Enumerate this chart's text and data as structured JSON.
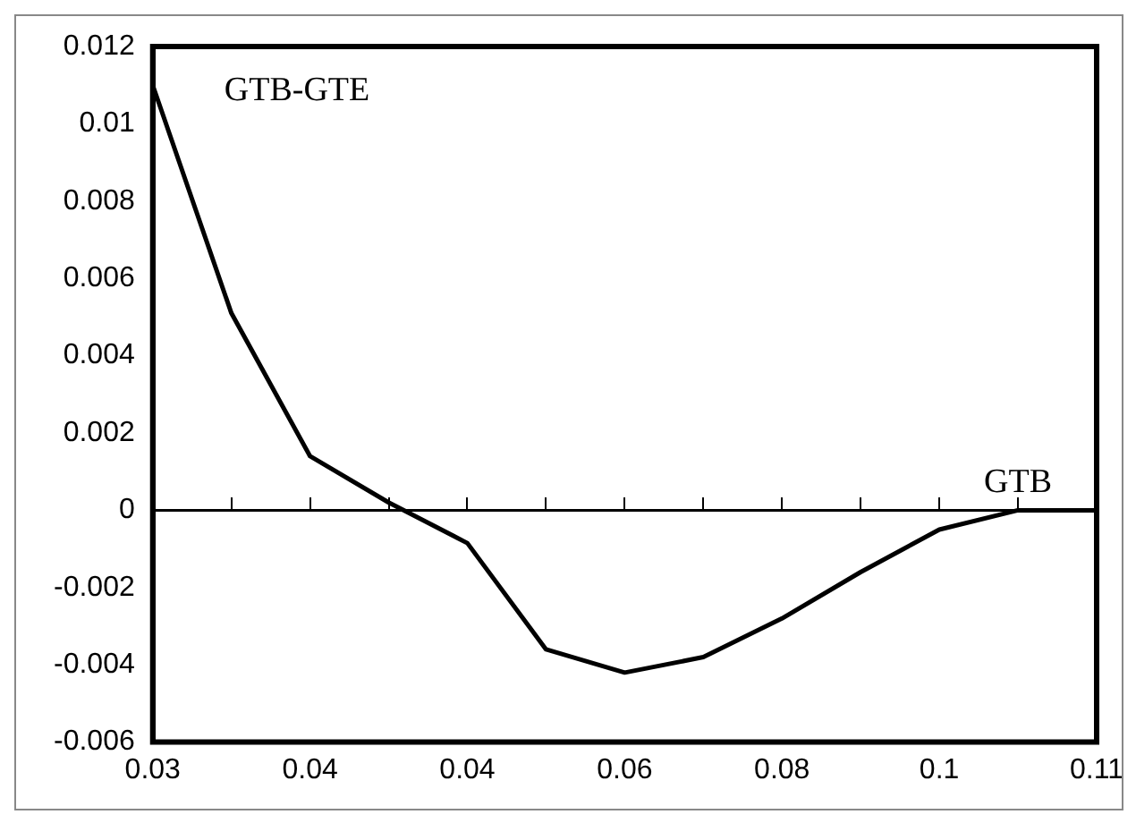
{
  "chart_data": {
    "type": "line",
    "categories": [
      "0.03",
      null,
      "0.04",
      null,
      "0.04",
      null,
      "0.06",
      null,
      "0.08",
      null,
      "0.1",
      null,
      "0.11"
    ],
    "series": [
      {
        "color": "#000000",
        "values": [
          0.011,
          0.0051,
          0.0014,
          0.0002,
          -0.00085,
          -0.0036,
          -0.0042,
          -0.0038,
          -0.0028,
          -0.0016,
          -0.0005,
          0,
          0
        ]
      }
    ],
    "ylim": [
      -0.006,
      0.012
    ],
    "yticks": [
      -0.006,
      -0.004,
      -0.002,
      0,
      0.002,
      0.004,
      0.006,
      0.008,
      0.01,
      0.012
    ],
    "annotations": [
      "GTB-GTE",
      "GTB"
    ],
    "ref_lines": [
      {
        "axis": "y",
        "value": 0,
        "color": "#000000",
        "line_style": "solid"
      }
    ],
    "grid": false,
    "legend": false,
    "marker": "none",
    "line_style": "solid"
  }
}
